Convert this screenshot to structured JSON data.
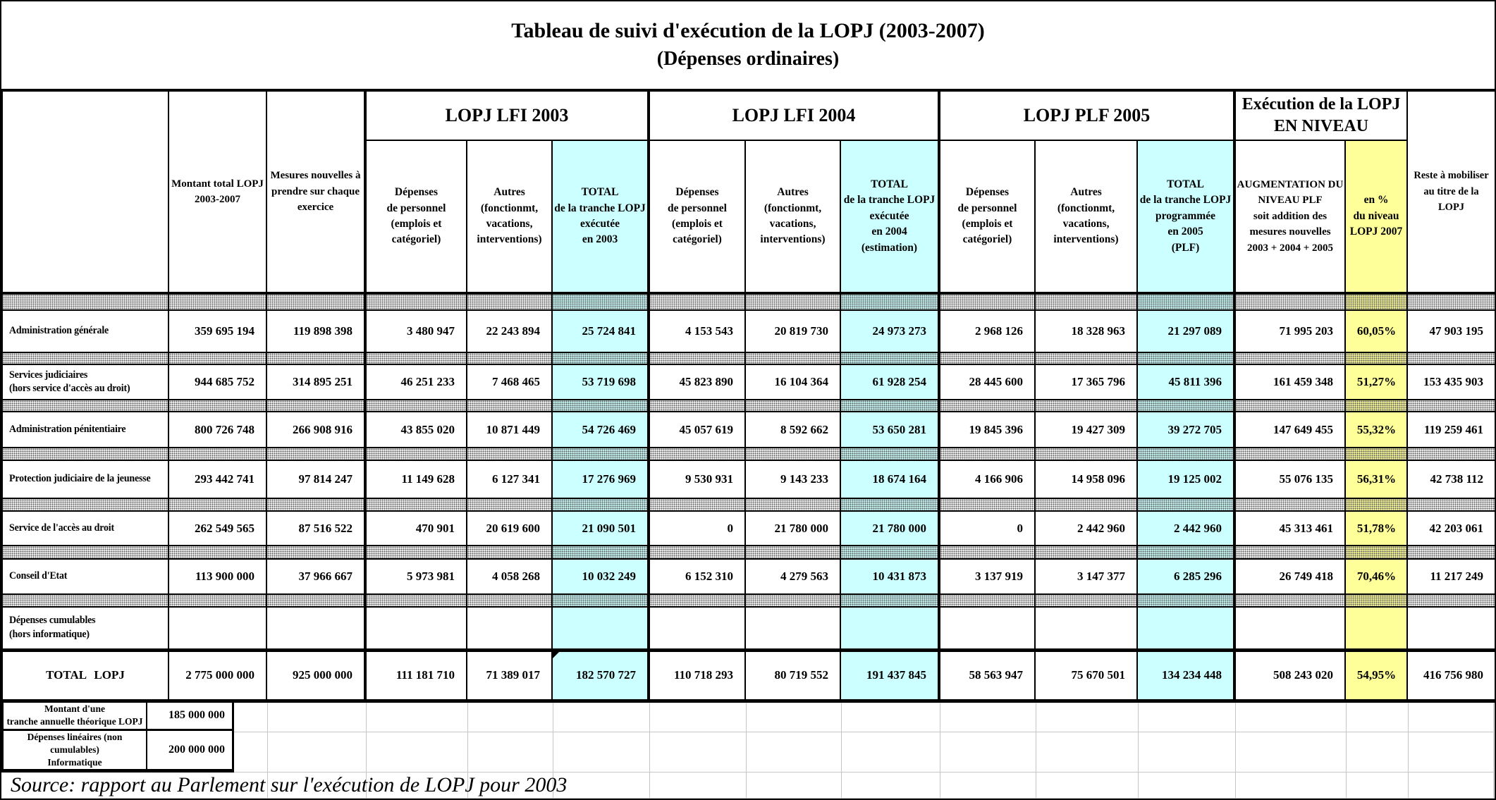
{
  "title": {
    "line1": "Tableau de suivi d'exécution de la LOPJ (2003-2007)",
    "line2": "(Dépenses ordinaires)"
  },
  "colors": {
    "cyan": "#CCFFFF",
    "yellow": "#FFFF99"
  },
  "header": {
    "montant": "Montant total LOPJ\n2003-2007",
    "mesures": "Mesures nouvelles à\nprendre sur chaque\nexercice",
    "groups": [
      {
        "label": "LOPJ LFI 2003"
      },
      {
        "label": "LOPJ LFI 2004"
      },
      {
        "label": "LOPJ PLF 2005"
      },
      {
        "label": "Exécution de la LOPJ\nEN NIVEAU"
      }
    ],
    "subs": {
      "dep2003": "Dépenses\nde personnel\n(emplois et\ncatégoriel)",
      "autres2003": "Autres\n(fonctionmt,\nvacations,\ninterventions)",
      "total2003": "TOTAL\nde la tranche LOPJ\nexécutée\nen 2003",
      "dep2004": "Dépenses\nde personnel\n(emplois et\ncatégoriel)",
      "autres2004": "Autres\n(fonctionmt,\nvacations,\ninterventions)",
      "total2004": "TOTAL\nde la tranche LOPJ\nexécutée\nen 2004\n(estimation)",
      "dep2005": "Dépenses\nde personnel\n(emplois et\ncatégoriel)",
      "autres2005": "Autres\n(fonctionmt,\nvacations,\ninterventions)",
      "total2005": "TOTAL\nde la tranche LOPJ\nprogrammée\nen 2005\n(PLF)",
      "augmentation": "AUGMENTATION DU\nNIVEAU PLF\nsoit addition des\nmesures nouvelles\n2003 + 2004 + 2005",
      "pourcent": "en %\ndu niveau\nLOPJ 2007"
    },
    "reste": "Reste à mobiliser\nau titre de la\nLOPJ"
  },
  "rows": [
    {
      "label": "Administration générale",
      "values": [
        "359 695 194",
        "119 898 398",
        "3 480 947",
        "22 243 894",
        "25 724 841",
        "4 153 543",
        "20 819 730",
        "24 973 273",
        "2 968 126",
        "18 328 963",
        "21 297 089",
        "71 995 203",
        "60,05%",
        "47 903 195"
      ]
    },
    {
      "label": "Services judiciaires\n(hors service d'accès au droit)",
      "values": [
        "944 685 752",
        "314 895 251",
        "46 251 233",
        "7 468 465",
        "53 719 698",
        "45 823 890",
        "16 104 364",
        "61 928 254",
        "28 445 600",
        "17 365 796",
        "45 811 396",
        "161 459 348",
        "51,27%",
        "153 435 903"
      ]
    },
    {
      "label": "Administration pénitentiaire",
      "values": [
        "800 726 748",
        "266 908 916",
        "43 855 020",
        "10 871 449",
        "54 726 469",
        "45 057 619",
        "8 592 662",
        "53 650 281",
        "19 845 396",
        "19 427 309",
        "39 272 705",
        "147 649 455",
        "55,32%",
        "119 259 461"
      ]
    },
    {
      "label": "Protection judiciaire de la jeunesse",
      "values": [
        "293 442 741",
        "97 814 247",
        "11 149 628",
        "6 127 341",
        "17 276 969",
        "9 530 931",
        "9 143 233",
        "18 674 164",
        "4 166 906",
        "14 958 096",
        "19 125 002",
        "55 076 135",
        "56,31%",
        "42 738 112"
      ]
    },
    {
      "label": "Service de l'accès au droit",
      "values": [
        "262 549 565",
        "87 516 522",
        "470 901",
        "20 619 600",
        "21 090 501",
        "0",
        "21 780 000",
        "21 780 000",
        "0",
        "2 442 960",
        "2 442 960",
        "45 313 461",
        "51,78%",
        "42 203 061"
      ]
    },
    {
      "label": "Conseil d'Etat",
      "values": [
        "113 900 000",
        "37 966 667",
        "5 973 981",
        "4 058 268",
        "10 032 249",
        "6 152 310",
        "4 279 563",
        "10 431 873",
        "3 137 919",
        "3 147 377",
        "6 285 296",
        "26 749 418",
        "70,46%",
        "11 217 249"
      ]
    }
  ],
  "cumulables": {
    "label": "Dépenses cumulables\n(hors informatique)",
    "values": [
      "",
      "",
      "",
      "",
      "",
      "",
      "",
      "",
      "",
      "",
      "",
      "",
      "",
      ""
    ]
  },
  "total_row": {
    "label": "TOTAL LOPJ",
    "values": [
      "2 775 000 000",
      "925 000 000",
      "111 181 710",
      "71 389 017",
      "182 570 727",
      "110 718 293",
      "80 719 552",
      "191 437 845",
      "58 563 947",
      "75 670 501",
      "134 234 448",
      "508 243 020",
      "54,95%",
      "416 756 980"
    ]
  },
  "bottom_rows": [
    {
      "label": "Montant d'une\ntranche annuelle théorique LOPJ",
      "value": "185 000 000"
    },
    {
      "label": "Dépenses linéaires (non\ncumulables)\nInformatique",
      "value": "200 000 000"
    }
  ],
  "source": "Source: rapport au Parlement sur l'exécution de LOPJ pour 2003"
}
